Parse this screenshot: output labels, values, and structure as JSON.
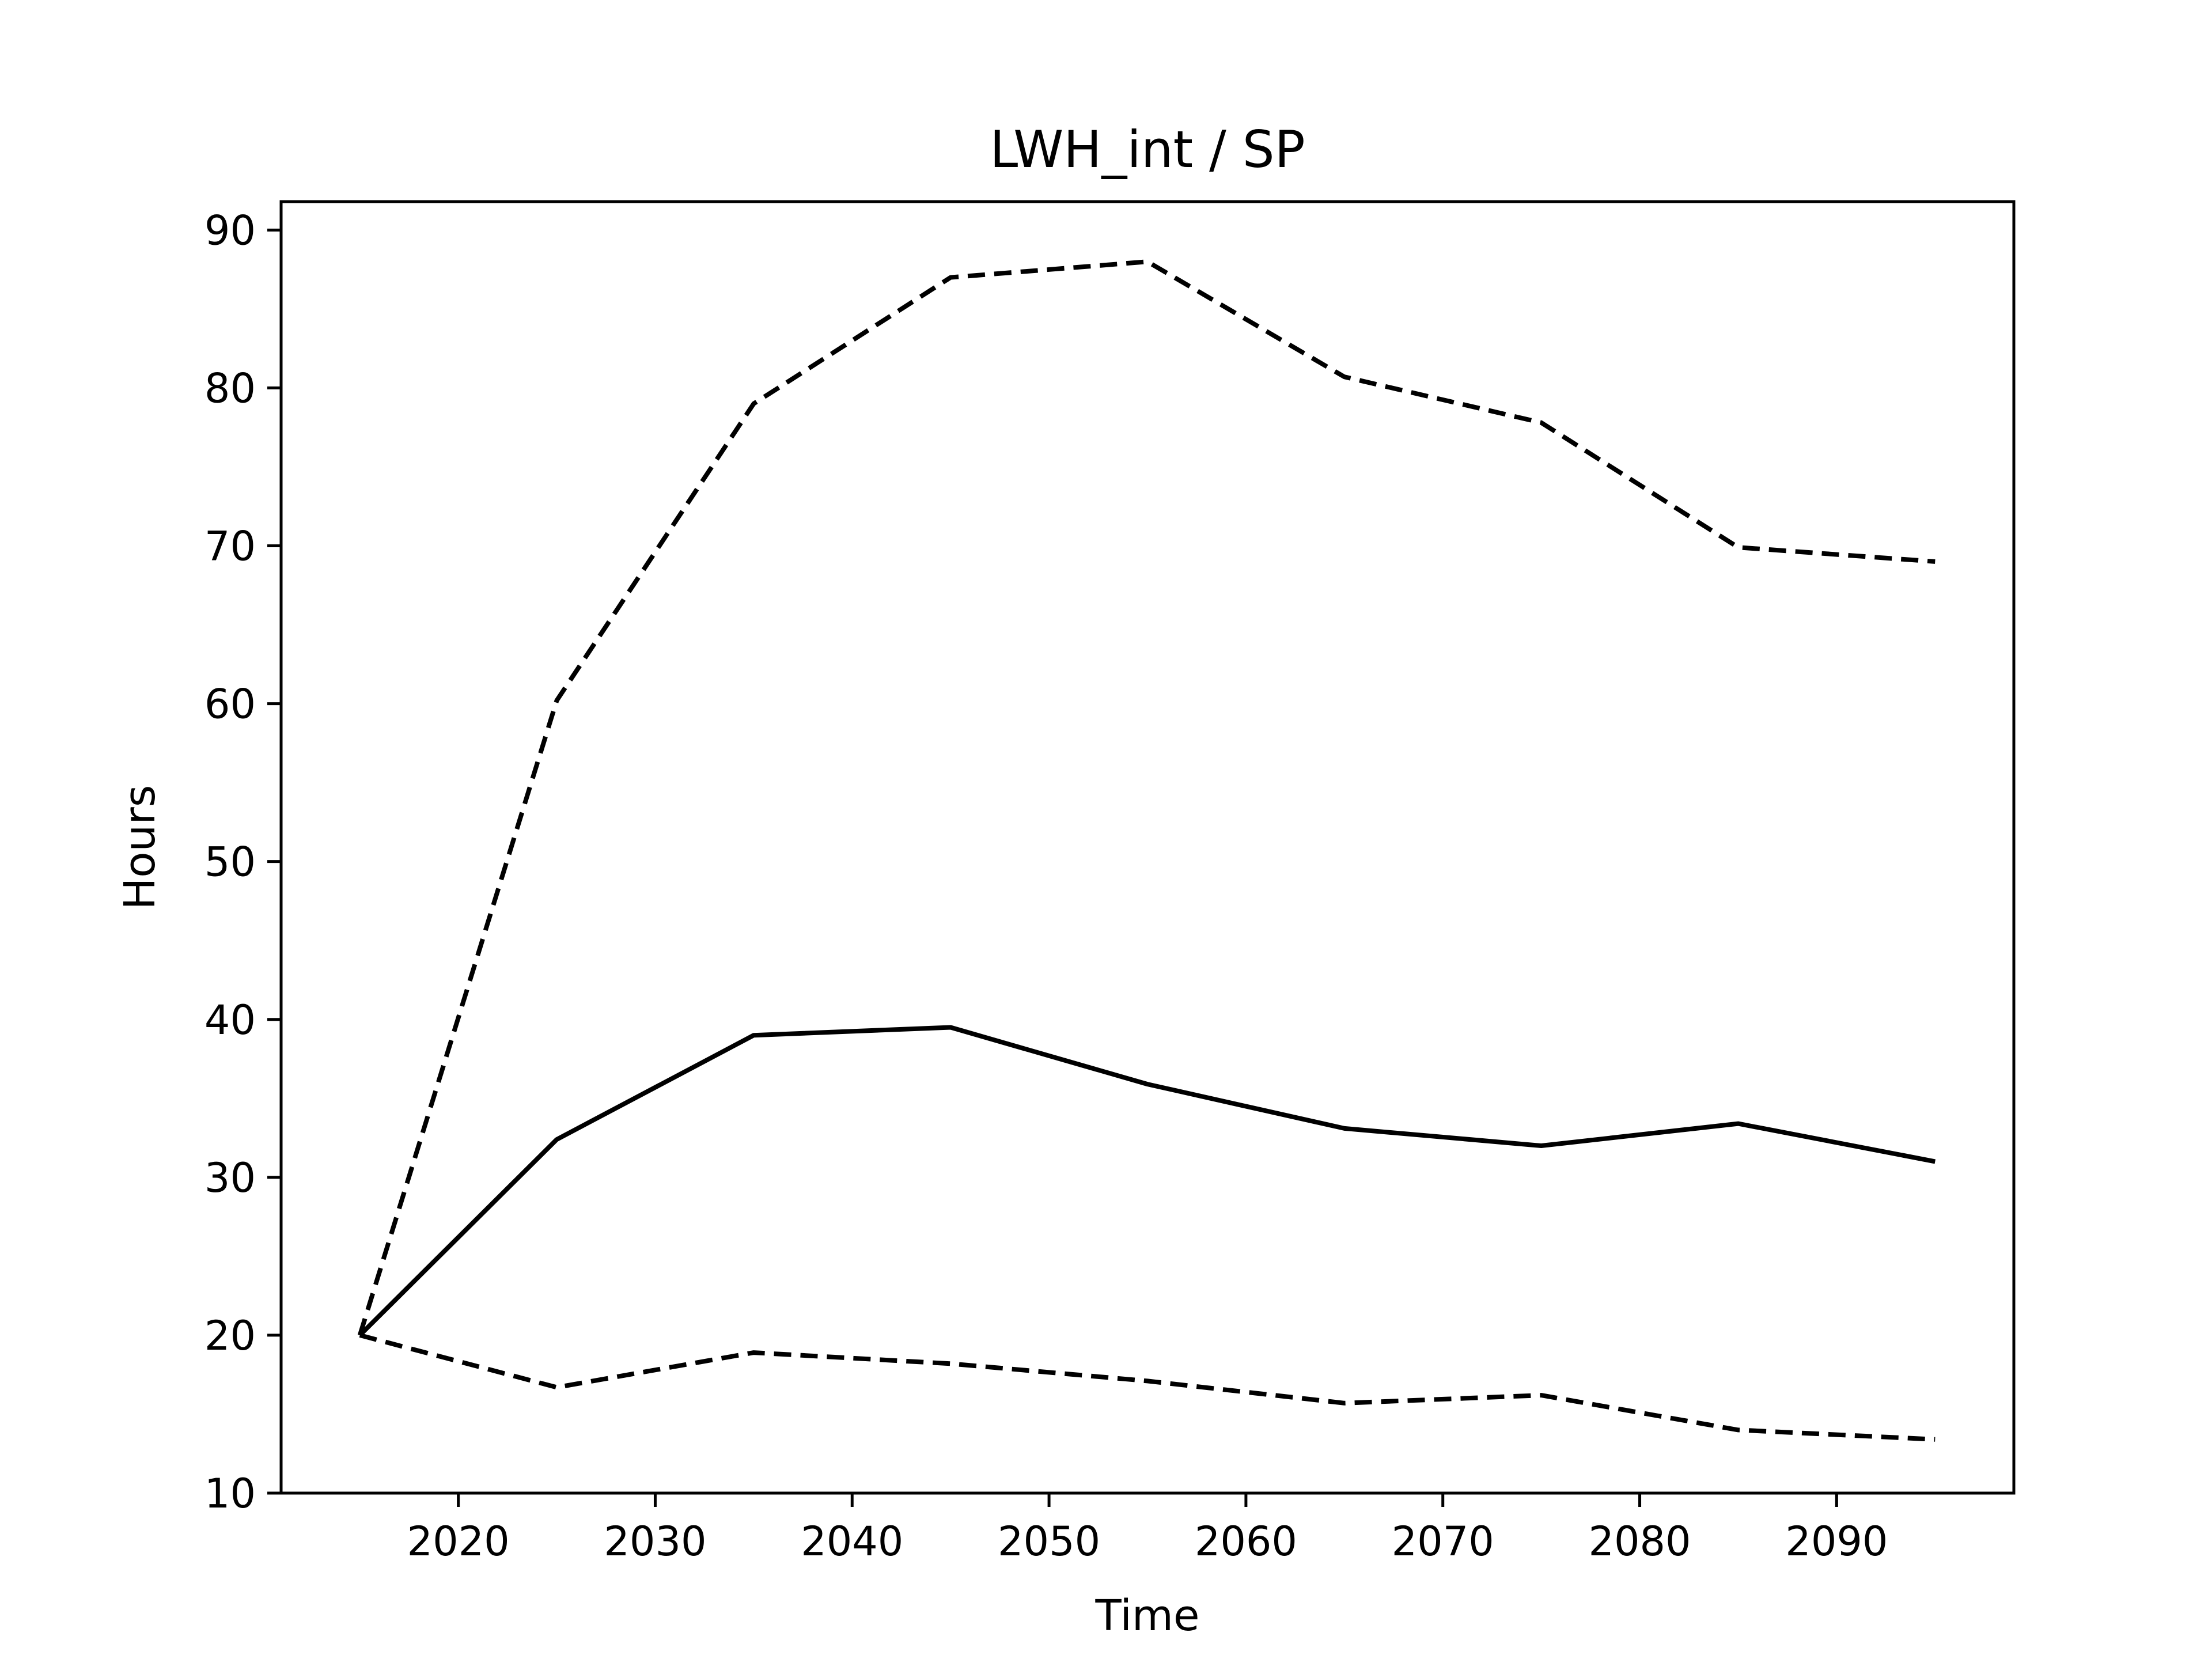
{
  "chart_data": {
    "type": "line",
    "title": "LWH_int / SP",
    "xlabel": "Time",
    "ylabel": "Hours",
    "xlim": [
      2011,
      2099
    ],
    "ylim": [
      10,
      91.8
    ],
    "x": [
      2015,
      2025,
      2035,
      2045,
      2055,
      2065,
      2075,
      2085,
      2095
    ],
    "xticks": [
      2020,
      2030,
      2040,
      2050,
      2060,
      2070,
      2080,
      2090
    ],
    "yticks": [
      10,
      20,
      30,
      40,
      50,
      60,
      70,
      80,
      90
    ],
    "grid": false,
    "legend": "none",
    "series": [
      {
        "style": "dashed",
        "color": "#000000",
        "values": [
          20,
          60.2,
          79,
          87,
          88,
          80.7,
          77.8,
          69.9,
          69
        ]
      },
      {
        "style": "solid",
        "color": "#000000",
        "values": [
          20,
          32.4,
          39,
          39.5,
          35.9,
          33.1,
          32,
          33.4,
          31
        ]
      },
      {
        "style": "dashed",
        "color": "#000000",
        "values": [
          20,
          16.7,
          18.9,
          18.2,
          17.1,
          15.7,
          16.2,
          14,
          13.4
        ]
      }
    ]
  }
}
